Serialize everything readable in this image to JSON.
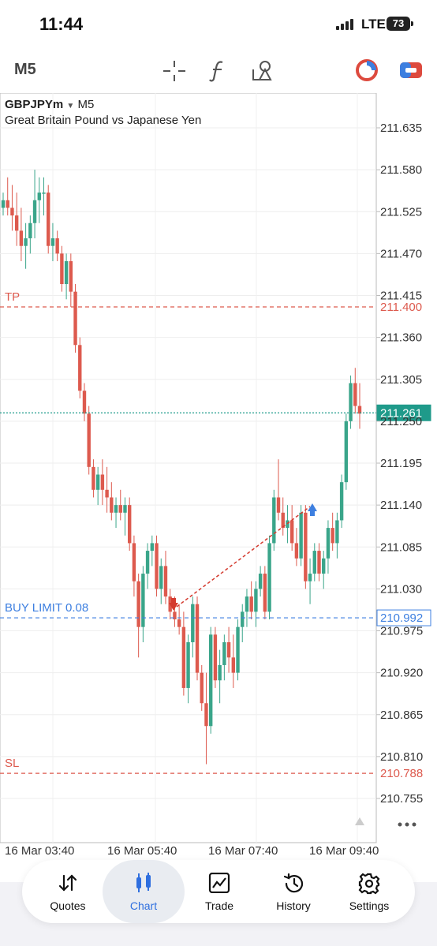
{
  "status": {
    "time": "11:44",
    "network": "LTE",
    "battery": "73"
  },
  "toolbar": {
    "timeframe": "M5",
    "icons": [
      "crosshair-icon",
      "function-icon",
      "objects-icon",
      "market-clock-icon",
      "toggle-icon"
    ]
  },
  "chart": {
    "symbol": "GBPJPYm",
    "timeframe": "M5",
    "description": "Great Britain Pound vs Japanese Yen",
    "price_ticks": [
      "211.635",
      "211.580",
      "211.525",
      "211.470",
      "211.415",
      "211.360",
      "211.305",
      "211.250",
      "211.195",
      "211.140",
      "211.085",
      "211.030",
      "210.975",
      "210.920",
      "210.865",
      "210.810",
      "210.755"
    ],
    "time_ticks": [
      "16 Mar 03:40",
      "16 Mar 05:40",
      "16 Mar 07:40",
      "16 Mar 09:40"
    ],
    "lines": {
      "tp_label": "TP",
      "tp_price": "211.400",
      "current_price": "211.261",
      "buy_limit_label": "BUY LIMIT 0.08",
      "buy_limit_price": "210.992",
      "sl_label": "SL",
      "sl_price": "210.788"
    },
    "colors": {
      "bull": "#3aa58a",
      "bear": "#dd5a4e",
      "tp_sl": "#dd5a4e",
      "current": "#1f9a8a",
      "buy_limit": "#3d7fe0"
    }
  },
  "chart_data": {
    "type": "candlestick",
    "title": "GBPJPYm M5",
    "ylim": [
      210.72,
      211.66
    ],
    "x": [
      "16 Mar 03:40",
      "16 Mar 05:40",
      "16 Mar 07:40",
      "16 Mar 09:40"
    ],
    "candles": [
      [
        211.53,
        211.55,
        211.52,
        211.54
      ],
      [
        211.54,
        211.57,
        211.52,
        211.53
      ],
      [
        211.53,
        211.56,
        211.5,
        211.52
      ],
      [
        211.52,
        211.55,
        211.48,
        211.5
      ],
      [
        211.5,
        211.53,
        211.46,
        211.48
      ],
      [
        211.48,
        211.51,
        211.45,
        211.49
      ],
      [
        211.49,
        211.52,
        211.47,
        211.51
      ],
      [
        211.51,
        211.58,
        211.49,
        211.54
      ],
      [
        211.54,
        211.57,
        211.51,
        211.55
      ],
      [
        211.55,
        211.57,
        211.52,
        211.55
      ],
      [
        211.55,
        211.56,
        211.47,
        211.48
      ],
      [
        211.48,
        211.51,
        211.46,
        211.49
      ],
      [
        211.49,
        211.5,
        211.46,
        211.47
      ],
      [
        211.47,
        211.48,
        211.42,
        211.43
      ],
      [
        211.43,
        211.47,
        211.41,
        211.46
      ],
      [
        211.46,
        211.47,
        211.4,
        211.42
      ],
      [
        211.42,
        211.43,
        211.34,
        211.35
      ],
      [
        211.35,
        211.36,
        211.28,
        211.29
      ],
      [
        211.29,
        211.3,
        211.25,
        211.26
      ],
      [
        211.26,
        211.27,
        211.18,
        211.19
      ],
      [
        211.19,
        211.2,
        211.15,
        211.16
      ],
      [
        211.16,
        211.19,
        211.14,
        211.18
      ],
      [
        211.18,
        211.2,
        211.14,
        211.16
      ],
      [
        211.16,
        211.19,
        211.13,
        211.15
      ],
      [
        211.15,
        211.17,
        211.12,
        211.13
      ],
      [
        211.13,
        211.15,
        211.11,
        211.14
      ],
      [
        211.14,
        211.16,
        211.12,
        211.13
      ],
      [
        211.13,
        211.15,
        211.1,
        211.14
      ],
      [
        211.14,
        211.15,
        211.08,
        211.09
      ],
      [
        211.09,
        211.1,
        211.02,
        211.04
      ],
      [
        211.04,
        211.05,
        210.94,
        210.98
      ],
      [
        210.98,
        211.06,
        210.96,
        211.05
      ],
      [
        211.05,
        211.09,
        211.03,
        211.08
      ],
      [
        211.08,
        211.1,
        211.06,
        211.09
      ],
      [
        211.09,
        211.1,
        211.02,
        211.03
      ],
      [
        211.03,
        211.07,
        211.01,
        211.06
      ],
      [
        211.06,
        211.08,
        211.01,
        211.02
      ],
      [
        211.02,
        211.03,
        210.99,
        211.0
      ],
      [
        211.0,
        211.02,
        210.98,
        210.99
      ],
      [
        210.99,
        211.01,
        210.97,
        210.98
      ],
      [
        210.98,
        211.0,
        210.89,
        210.9
      ],
      [
        210.9,
        210.97,
        210.88,
        210.96
      ],
      [
        210.96,
        211.02,
        210.94,
        211.01
      ],
      [
        211.01,
        211.02,
        210.91,
        210.92
      ],
      [
        210.92,
        210.93,
        210.87,
        210.88
      ],
      [
        210.88,
        210.92,
        210.8,
        210.85
      ],
      [
        210.85,
        210.98,
        210.84,
        210.97
      ],
      [
        210.97,
        210.98,
        210.9,
        210.91
      ],
      [
        210.91,
        210.95,
        210.88,
        210.93
      ],
      [
        210.93,
        210.97,
        210.91,
        210.96
      ],
      [
        210.96,
        210.98,
        210.92,
        210.94
      ],
      [
        210.94,
        210.97,
        210.9,
        210.92
      ],
      [
        210.92,
        210.99,
        210.91,
        210.98
      ],
      [
        210.98,
        211.01,
        210.96,
        211.0
      ],
      [
        211.0,
        211.03,
        210.98,
        211.02
      ],
      [
        211.02,
        211.04,
        210.99,
        211.0
      ],
      [
        211.0,
        211.04,
        210.98,
        211.03
      ],
      [
        211.03,
        211.06,
        211.02,
        211.05
      ],
      [
        211.05,
        211.06,
        210.99,
        211.0
      ],
      [
        211.0,
        211.1,
        210.99,
        211.09
      ],
      [
        211.09,
        211.16,
        211.08,
        211.15
      ],
      [
        211.15,
        211.2,
        211.12,
        211.13
      ],
      [
        211.13,
        211.15,
        211.1,
        211.11
      ],
      [
        211.11,
        211.14,
        211.09,
        211.12
      ],
      [
        211.12,
        211.14,
        211.08,
        211.09
      ],
      [
        211.09,
        211.11,
        211.06,
        211.07
      ],
      [
        211.07,
        211.14,
        211.06,
        211.13
      ],
      [
        211.13,
        211.14,
        211.03,
        211.04
      ],
      [
        211.04,
        211.07,
        211.01,
        211.05
      ],
      [
        211.05,
        211.09,
        211.04,
        211.08
      ],
      [
        211.08,
        211.09,
        211.04,
        211.05
      ],
      [
        211.05,
        211.08,
        211.03,
        211.07
      ],
      [
        211.07,
        211.12,
        211.05,
        211.11
      ],
      [
        211.11,
        211.13,
        211.08,
        211.09
      ],
      [
        211.09,
        211.13,
        211.07,
        211.12
      ],
      [
        211.12,
        211.18,
        211.11,
        211.17
      ],
      [
        211.17,
        211.26,
        211.16,
        211.25
      ],
      [
        211.25,
        211.31,
        211.24,
        211.3
      ],
      [
        211.3,
        211.32,
        211.26,
        211.27
      ],
      [
        211.27,
        211.3,
        211.24,
        211.26
      ]
    ]
  },
  "nav": {
    "items": [
      {
        "label": "Quotes",
        "icon": "quotes-icon"
      },
      {
        "label": "Chart",
        "icon": "chart-icon"
      },
      {
        "label": "Trade",
        "icon": "trade-icon"
      },
      {
        "label": "History",
        "icon": "history-icon"
      },
      {
        "label": "Settings",
        "icon": "settings-icon"
      }
    ],
    "active": "Chart"
  }
}
